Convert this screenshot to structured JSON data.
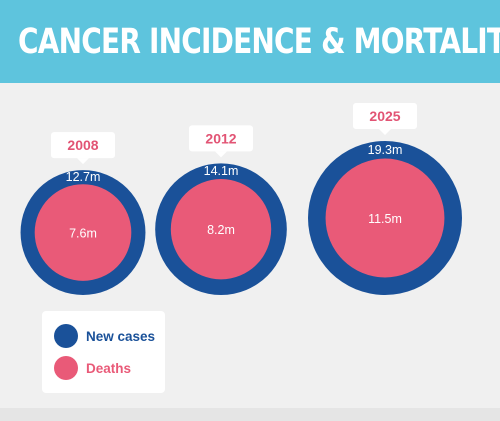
{
  "header": {
    "title": "CANCER INCIDENCE & MORTALITY"
  },
  "colors": {
    "header_bg": "#5ec4dd",
    "new_cases": "#1a5199",
    "deaths": "#e95a78",
    "year_text": "#e25474",
    "background": "#f0f0f0"
  },
  "chart_data": {
    "type": "nested-bubble",
    "title": "CANCER INCIDENCE & MORTALITY",
    "categories": [
      "2008",
      "2012",
      "2025"
    ],
    "series": [
      {
        "name": "New cases",
        "values": [
          12.7,
          14.1,
          19.3
        ],
        "labels": [
          "12.7m",
          "14.1m",
          "19.3m"
        ],
        "color": "#1a5199"
      },
      {
        "name": "Deaths",
        "values": [
          7.6,
          8.2,
          11.5
        ],
        "labels": [
          "7.6m",
          "8.2m",
          "11.5m"
        ],
        "color": "#e95a78"
      }
    ],
    "unit": "m",
    "legend_position": "bottom-left",
    "grid": false
  },
  "legend": {
    "items": [
      {
        "label": "New cases",
        "color": "#1a5199"
      },
      {
        "label": "Deaths",
        "color": "#e95a78"
      }
    ]
  }
}
